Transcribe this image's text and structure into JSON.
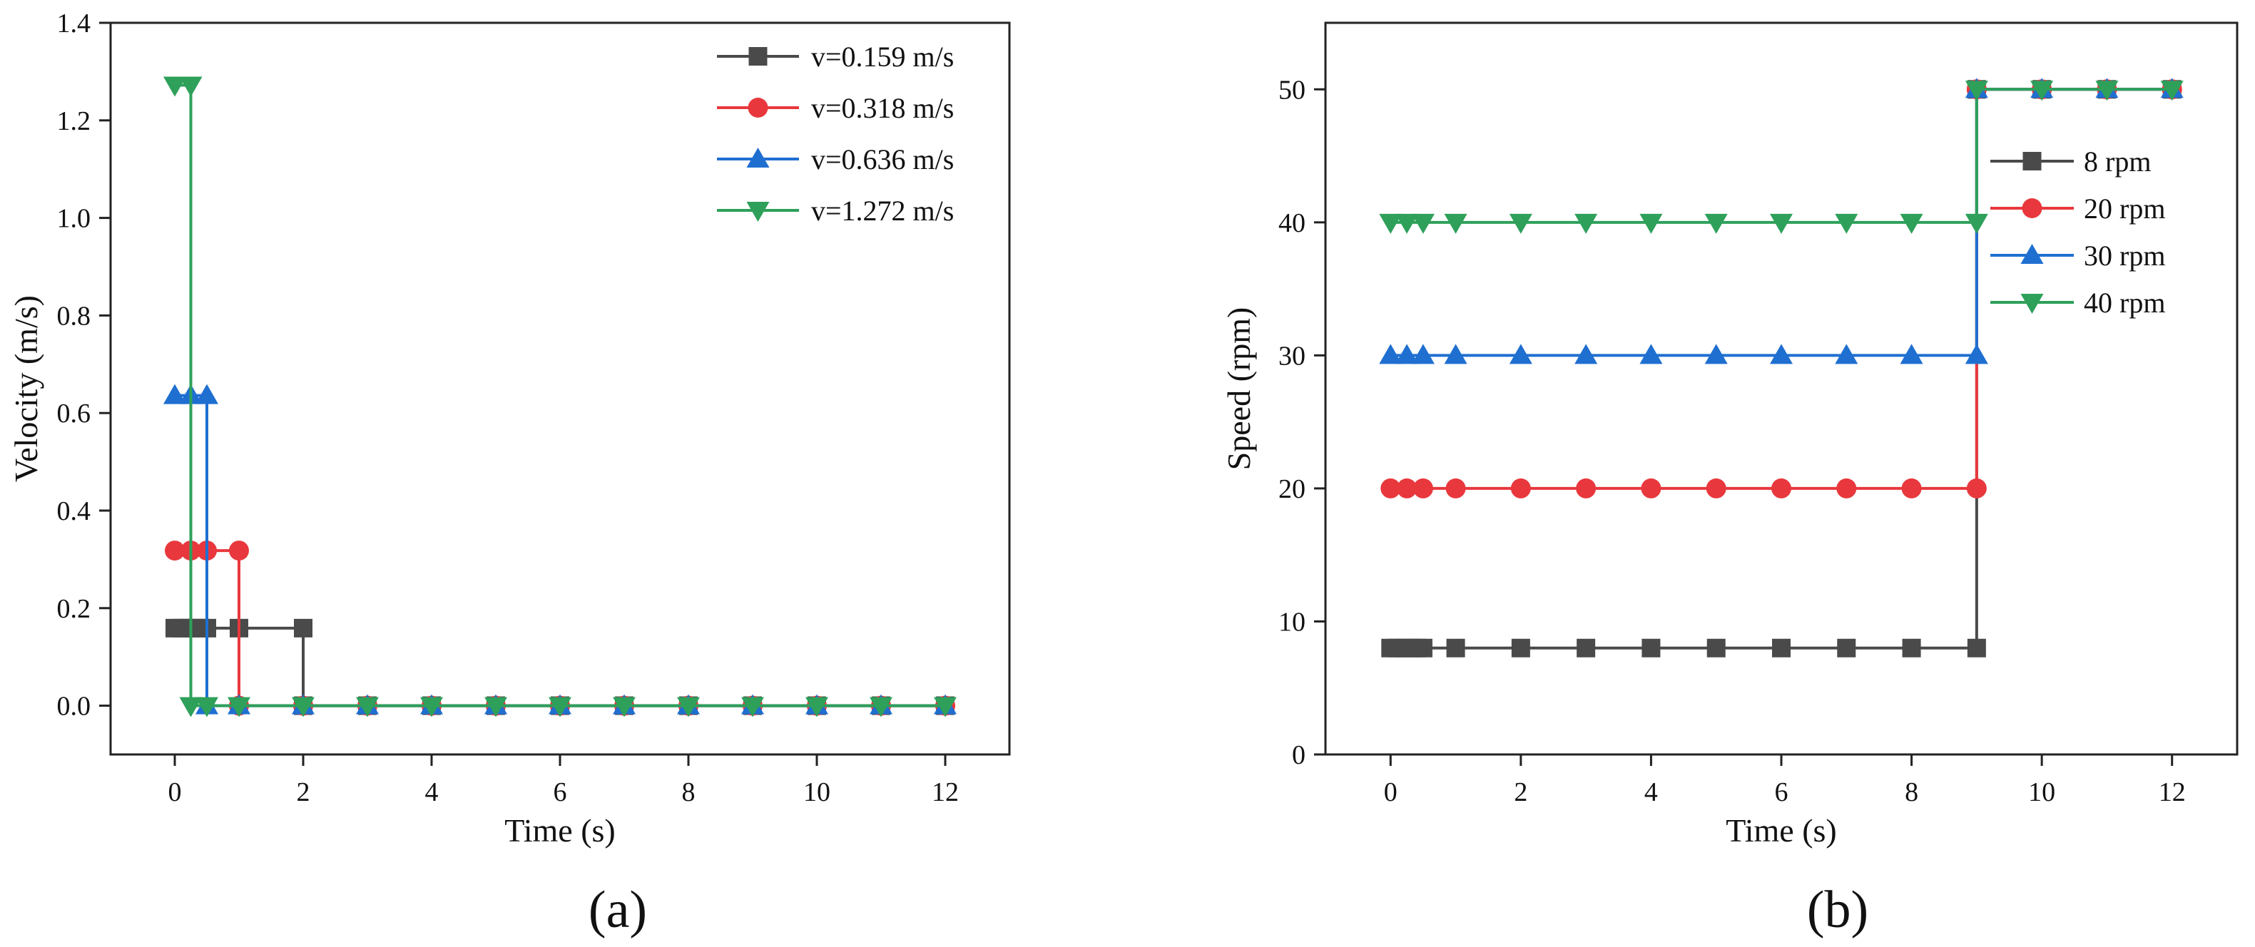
{
  "chart_data": [
    {
      "type": "line",
      "title": "",
      "panel_label": "(a)",
      "xlabel": "Time (s)",
      "ylabel": "Velocity (m/s)",
      "xlim": [
        -1,
        13
      ],
      "ylim": [
        -0.1,
        1.4
      ],
      "xticks": [
        0,
        2,
        4,
        6,
        8,
        10,
        12
      ],
      "yticks": [
        0.0,
        0.2,
        0.4,
        0.6,
        0.8,
        1.0,
        1.2,
        1.4
      ],
      "ytick_labels": [
        "0.0",
        "0.2",
        "0.4",
        "0.6",
        "0.8",
        "1.0",
        "1.2",
        "1.4"
      ],
      "legend_position": "top-right",
      "grid": false,
      "series": [
        {
          "name": "v=0.159 m/s",
          "color": "#4a4a4a",
          "marker": "square",
          "x": [
            0,
            0.25,
            0.5,
            1,
            2,
            2,
            3,
            4,
            5,
            6,
            7,
            8,
            9,
            10,
            11,
            12
          ],
          "y": [
            0.159,
            0.159,
            0.159,
            0.159,
            0.159,
            0,
            0,
            0,
            0,
            0,
            0,
            0,
            0,
            0,
            0,
            0
          ],
          "markers_x": [
            0,
            0.1,
            0.2,
            0.3,
            0.4,
            0.5,
            1,
            2,
            2,
            3,
            4,
            5,
            6,
            7,
            8,
            9,
            10,
            11,
            12
          ],
          "markers_y": [
            0.159,
            0.159,
            0.159,
            0.159,
            0.159,
            0.159,
            0.159,
            0.159,
            0,
            0,
            0,
            0,
            0,
            0,
            0,
            0,
            0,
            0,
            0
          ]
        },
        {
          "name": "v=0.318 m/s",
          "color": "#e8383d",
          "marker": "circle",
          "x": [
            0,
            0.25,
            0.5,
            1,
            1,
            2,
            3,
            4,
            5,
            6,
            7,
            8,
            9,
            10,
            11,
            12
          ],
          "y": [
            0.318,
            0.318,
            0.318,
            0.318,
            0,
            0,
            0,
            0,
            0,
            0,
            0,
            0,
            0,
            0,
            0,
            0
          ],
          "markers_x": [
            0,
            0.25,
            0.5,
            1,
            1,
            2,
            3,
            4,
            5,
            6,
            7,
            8,
            9,
            10,
            11,
            12
          ],
          "markers_y": [
            0.318,
            0.318,
            0.318,
            0.318,
            0,
            0,
            0,
            0,
            0,
            0,
            0,
            0,
            0,
            0,
            0,
            0
          ]
        },
        {
          "name": "v=0.636 m/s",
          "color": "#1f6fd1",
          "marker": "triangle-up",
          "x": [
            0,
            0.25,
            0.5,
            0.5,
            1,
            2,
            3,
            4,
            5,
            6,
            7,
            8,
            9,
            10,
            11,
            12
          ],
          "y": [
            0.636,
            0.636,
            0.636,
            0,
            0,
            0,
            0,
            0,
            0,
            0,
            0,
            0,
            0,
            0,
            0,
            0
          ],
          "markers_x": [
            0,
            0.25,
            0.5,
            0.5,
            1,
            2,
            3,
            4,
            5,
            6,
            7,
            8,
            9,
            10,
            11,
            12
          ],
          "markers_y": [
            0.636,
            0.636,
            0.636,
            0,
            0,
            0,
            0,
            0,
            0,
            0,
            0,
            0,
            0,
            0,
            0,
            0
          ]
        },
        {
          "name": "v=1.272 m/s",
          "color": "#2ea05a",
          "marker": "triangle-down",
          "x": [
            0,
            0.25,
            0.25,
            0.5,
            1,
            2,
            3,
            4,
            5,
            6,
            7,
            8,
            9,
            10,
            11,
            12
          ],
          "y": [
            1.272,
            1.272,
            0,
            0,
            0,
            0,
            0,
            0,
            0,
            0,
            0,
            0,
            0,
            0,
            0,
            0
          ],
          "markers_x": [
            0,
            0.25,
            0.25,
            0.5,
            1,
            2,
            3,
            4,
            5,
            6,
            7,
            8,
            9,
            10,
            11,
            12
          ],
          "markers_y": [
            1.272,
            1.272,
            0,
            0,
            0,
            0,
            0,
            0,
            0,
            0,
            0,
            0,
            0,
            0,
            0,
            0
          ]
        }
      ]
    },
    {
      "type": "line",
      "title": "",
      "panel_label": "(b)",
      "xlabel": "Time (s)",
      "ylabel": "Speed (rpm)",
      "xlim": [
        -1,
        13
      ],
      "ylim": [
        0,
        55
      ],
      "xticks": [
        0,
        2,
        4,
        6,
        8,
        10,
        12
      ],
      "yticks": [
        0,
        10,
        20,
        30,
        40,
        50
      ],
      "ytick_labels": [
        "0",
        "10",
        "20",
        "30",
        "40",
        "50"
      ],
      "legend_position": "right",
      "grid": false,
      "series": [
        {
          "name": "8 rpm",
          "color": "#4a4a4a",
          "marker": "square",
          "x": [
            0,
            0.25,
            0.5,
            1,
            2,
            3,
            4,
            5,
            6,
            7,
            8,
            9,
            9,
            10,
            11,
            12
          ],
          "y": [
            8,
            8,
            8,
            8,
            8,
            8,
            8,
            8,
            8,
            8,
            8,
            8,
            50,
            50,
            50,
            50
          ],
          "markers_x": [
            0,
            0.1,
            0.2,
            0.3,
            0.4,
            0.5,
            1,
            2,
            3,
            4,
            5,
            6,
            7,
            8,
            9,
            9,
            10,
            11,
            12
          ],
          "markers_y": [
            8,
            8,
            8,
            8,
            8,
            8,
            8,
            8,
            8,
            8,
            8,
            8,
            8,
            8,
            8,
            50,
            50,
            50,
            50
          ]
        },
        {
          "name": "20 rpm",
          "color": "#e8383d",
          "marker": "circle",
          "x": [
            0,
            0.25,
            0.5,
            1,
            2,
            3,
            4,
            5,
            6,
            7,
            8,
            9,
            9,
            10,
            11,
            12
          ],
          "y": [
            20,
            20,
            20,
            20,
            20,
            20,
            20,
            20,
            20,
            20,
            20,
            20,
            50,
            50,
            50,
            50
          ],
          "markers_x": [
            0,
            0.25,
            0.5,
            1,
            2,
            3,
            4,
            5,
            6,
            7,
            8,
            9,
            9,
            10,
            11,
            12
          ],
          "markers_y": [
            20,
            20,
            20,
            20,
            20,
            20,
            20,
            20,
            20,
            20,
            20,
            20,
            50,
            50,
            50,
            50
          ]
        },
        {
          "name": "30 rpm",
          "color": "#1f6fd1",
          "marker": "triangle-up",
          "x": [
            0,
            0.25,
            0.5,
            1,
            2,
            3,
            4,
            5,
            6,
            7,
            8,
            9,
            9,
            10,
            11,
            12
          ],
          "y": [
            30,
            30,
            30,
            30,
            30,
            30,
            30,
            30,
            30,
            30,
            30,
            30,
            50,
            50,
            50,
            50
          ],
          "markers_x": [
            0,
            0.25,
            0.5,
            1,
            2,
            3,
            4,
            5,
            6,
            7,
            8,
            9,
            9,
            10,
            11,
            12
          ],
          "markers_y": [
            30,
            30,
            30,
            30,
            30,
            30,
            30,
            30,
            30,
            30,
            30,
            30,
            50,
            50,
            50,
            50
          ]
        },
        {
          "name": "40 rpm",
          "color": "#2ea05a",
          "marker": "triangle-down",
          "x": [
            0,
            0.25,
            0.5,
            1,
            2,
            3,
            4,
            5,
            6,
            7,
            8,
            9,
            9,
            10,
            11,
            12
          ],
          "y": [
            40,
            40,
            40,
            40,
            40,
            40,
            40,
            40,
            40,
            40,
            40,
            40,
            50,
            50,
            50,
            50
          ],
          "markers_x": [
            0,
            0.25,
            0.5,
            1,
            2,
            3,
            4,
            5,
            6,
            7,
            8,
            9,
            9,
            10,
            11,
            12
          ],
          "markers_y": [
            40,
            40,
            40,
            40,
            40,
            40,
            40,
            40,
            40,
            40,
            40,
            40,
            50,
            50,
            50,
            50
          ]
        }
      ]
    }
  ]
}
